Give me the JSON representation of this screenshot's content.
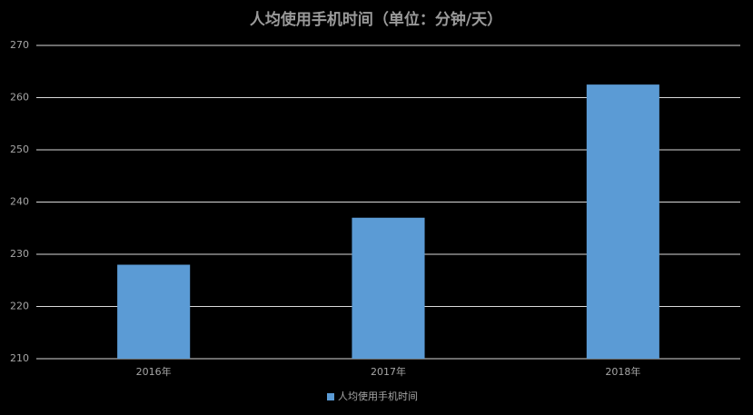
{
  "chart_data": {
    "type": "bar",
    "title": "人均使用手机时间（单位：分钟/天）",
    "categories": [
      "2016年",
      "2017年",
      "2018年"
    ],
    "series": [
      {
        "name": "人均使用手机时间",
        "color": "#5b9bd5",
        "values": [
          228,
          237,
          262.5
        ]
      }
    ],
    "ylim": [
      210,
      270
    ],
    "yticks": [
      210,
      220,
      230,
      240,
      250,
      260,
      270
    ],
    "grid": true,
    "legend": "bottom"
  }
}
